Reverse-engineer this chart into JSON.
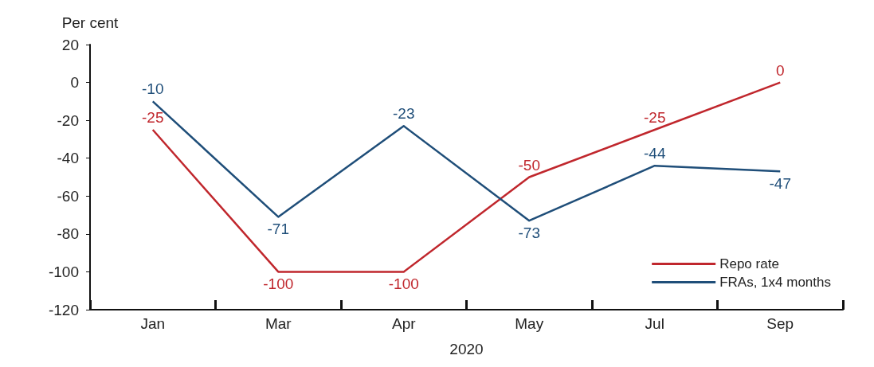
{
  "chart_data": {
    "type": "line",
    "ylabel": "Per cent",
    "xlabel": "2020",
    "categories": [
      "Jan",
      "Mar",
      "Apr",
      "May",
      "Jul",
      "Sep"
    ],
    "series": [
      {
        "name": "Repo rate",
        "color": "#c0272d",
        "values": [
          -25,
          -100,
          -100,
          -50,
          -25,
          0
        ]
      },
      {
        "name": "FRAs, 1x4 months",
        "color": "#1f4e79",
        "values": [
          -10,
          -71,
          -23,
          -73,
          -44,
          -47
        ]
      }
    ],
    "ylim": [
      -120,
      20
    ],
    "yticks": [
      -120,
      -100,
      -80,
      -60,
      -40,
      -20,
      0,
      20
    ],
    "grid": false,
    "legend": "bottom right",
    "data_labels": true,
    "marker": "none",
    "line_style": "solid"
  }
}
